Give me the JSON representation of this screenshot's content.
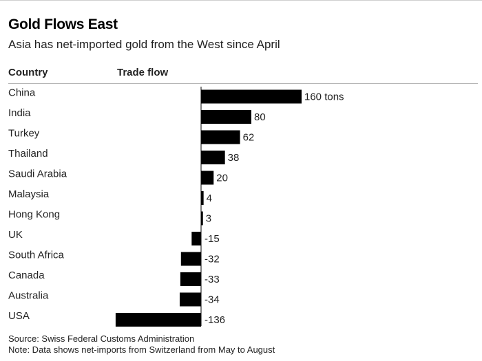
{
  "header": {
    "title": "Gold Flows East",
    "subtitle": "Asia has net-imported gold from the West since April",
    "col_country": "Country",
    "col_trade_flow": "Trade flow"
  },
  "footer": {
    "source": "Source: Swiss Federal Customs Administration",
    "note": "Note: Data shows net-imports from Switzerland from May to August"
  },
  "chart_data": {
    "type": "bar",
    "orientation": "horizontal",
    "title": "Gold Flows East",
    "subtitle": "Asia has net-imported gold from the West since April",
    "xlabel": "",
    "ylabel": "",
    "categories": [
      "China",
      "India",
      "Turkey",
      "Thailand",
      "Saudi Arabia",
      "Malaysia",
      "Hong Kong",
      "UK",
      "South Africa",
      "Canada",
      "Australia",
      "USA"
    ],
    "values": [
      160,
      80,
      62,
      38,
      20,
      4,
      3,
      -15,
      -32,
      -33,
      -34,
      -136
    ],
    "value_labels": [
      "160 tons",
      "80",
      "62",
      "38",
      "20",
      "4",
      "3",
      "-15",
      "-32",
      "-33",
      "-34",
      "-136"
    ],
    "unit": "tons",
    "xlim": [
      -136,
      160
    ],
    "grid": false,
    "bar_color": "#000000"
  }
}
